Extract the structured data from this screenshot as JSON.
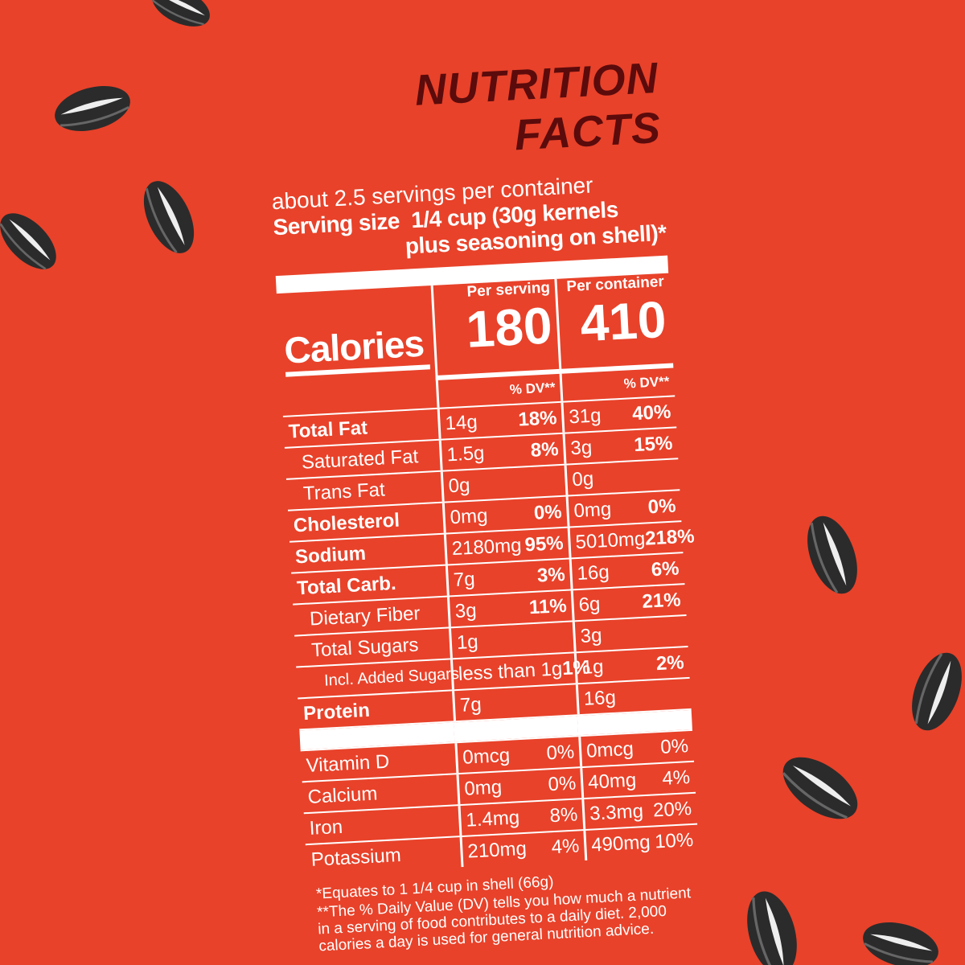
{
  "title": "NUTRITION FACTS",
  "servings_per_container": "about 2.5 servings per container",
  "serving_size": {
    "label": "Serving size",
    "value_line1": "1/4 cup (30g kernels",
    "value_line2": "plus seasoning on shell)*"
  },
  "columns": {
    "serving": "Per serving",
    "container": "Per container"
  },
  "calories": {
    "label": "Calories",
    "serving": "180",
    "container": "410"
  },
  "dv_header": "% DV**",
  "rows": [
    {
      "name": "Total Fat",
      "serving": {
        "amount": "14g",
        "dv": "18%"
      },
      "container": {
        "amount": "31g",
        "dv": "40%"
      }
    },
    {
      "name": "Saturated Fat",
      "serving": {
        "amount": "1.5g",
        "dv": "8%"
      },
      "container": {
        "amount": "3g",
        "dv": "15%"
      }
    },
    {
      "name": "Trans Fat",
      "serving": {
        "amount": "0g"
      },
      "container": {
        "amount": "0g"
      }
    },
    {
      "name": "Cholesterol",
      "serving": {
        "amount": "0mg",
        "dv": "0%"
      },
      "container": {
        "amount": "0mg",
        "dv": "0%"
      }
    },
    {
      "name": "Sodium",
      "serving": {
        "amount": "2180mg",
        "dv": "95%"
      },
      "container": {
        "amount": "5010mg",
        "dv": "218%"
      }
    },
    {
      "name": "Total Carb.",
      "serving": {
        "amount": "7g",
        "dv": "3%"
      },
      "container": {
        "amount": "16g",
        "dv": "6%"
      }
    },
    {
      "name": "Dietary Fiber",
      "serving": {
        "amount": "3g",
        "dv": "11%"
      },
      "container": {
        "amount": "6g",
        "dv": "21%"
      }
    },
    {
      "name": "Total Sugars",
      "serving": {
        "amount": "1g"
      },
      "container": {
        "amount": "3g"
      }
    },
    {
      "name": "Incl. Added Sugars",
      "serving": {
        "amount": "less than 1g",
        "dv": "1%"
      },
      "container": {
        "amount": "1g",
        "dv": "2%"
      }
    },
    {
      "name": "Protein",
      "serving": {
        "amount": "7g"
      },
      "container": {
        "amount": "16g"
      }
    }
  ],
  "vitamins": [
    {
      "name": "Vitamin D",
      "serving": {
        "amount": "0mcg",
        "dv": "0%"
      },
      "container": {
        "amount": "0mcg",
        "dv": "0%"
      }
    },
    {
      "name": "Calcium",
      "serving": {
        "amount": "0mg",
        "dv": "0%"
      },
      "container": {
        "amount": "40mg",
        "dv": "4%"
      }
    },
    {
      "name": "Iron",
      "serving": {
        "amount": "1.4mg",
        "dv": "8%"
      },
      "container": {
        "amount": "3.3mg",
        "dv": "20%"
      }
    },
    {
      "name": "Potassium",
      "serving": {
        "amount": "210mg",
        "dv": "4%"
      },
      "container": {
        "amount": "490mg",
        "dv": "10%"
      }
    }
  ],
  "footnotes": [
    "*Equates to 1 1/4 cup in shell (66g)",
    "**The % Daily Value (DV) tells you how much a nutrient in a serving of food contributes to a daily diet. 2,000 calories a day is used for general nutrition advice."
  ]
}
